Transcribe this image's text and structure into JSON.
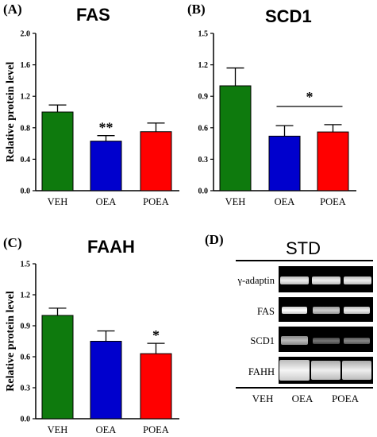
{
  "panels": {
    "a": {
      "letter": "(A)",
      "title": "FAS"
    },
    "b": {
      "letter": "(B)",
      "title": "SCD1"
    },
    "c": {
      "letter": "(C)",
      "title": "FAAH"
    },
    "d": {
      "letter": "(D)",
      "title": "STD"
    }
  },
  "ylabel": "Relative protein level",
  "chart_data": [
    {
      "type": "bar",
      "title": "FAS",
      "ylabel": "Relative protein level",
      "categories": [
        "VEH",
        "OEA",
        "POEA"
      ],
      "values": [
        1.0,
        0.63,
        0.75
      ],
      "errors": [
        0.09,
        0.07,
        0.11
      ],
      "colors": [
        "#0e7a0d",
        "#0000cd",
        "#ff0000"
      ],
      "significance": [
        "",
        "**",
        ""
      ],
      "ylim": [
        0,
        2.0
      ],
      "yticks": [
        "0.0",
        "0.4",
        "0.8",
        "1.2",
        "1.6",
        "2.0"
      ]
    },
    {
      "type": "bar",
      "title": "SCD1",
      "ylabel": "",
      "categories": [
        "VEH",
        "OEA",
        "POEA"
      ],
      "values": [
        1.0,
        0.52,
        0.56
      ],
      "errors": [
        0.17,
        0.1,
        0.07
      ],
      "colors": [
        "#0e7a0d",
        "#0000cd",
        "#ff0000"
      ],
      "significance": [
        "",
        "",
        ""
      ],
      "bracket": {
        "from": "OEA",
        "to": "POEA",
        "label": "*"
      },
      "ylim": [
        0,
        1.5
      ],
      "yticks": [
        "0.0",
        "0.3",
        "0.6",
        "0.9",
        "1.2",
        "1.5"
      ]
    },
    {
      "type": "bar",
      "title": "FAAH",
      "ylabel": "Relative protein level",
      "categories": [
        "VEH",
        "OEA",
        "POEA"
      ],
      "values": [
        1.0,
        0.75,
        0.63
      ],
      "errors": [
        0.07,
        0.1,
        0.1
      ],
      "colors": [
        "#0e7a0d",
        "#0000cd",
        "#ff0000"
      ],
      "significance": [
        "",
        "",
        "*"
      ],
      "ylim": [
        0,
        1.5
      ],
      "yticks": [
        "0.0",
        "0.3",
        "0.6",
        "0.9",
        "1.2",
        "1.5"
      ]
    }
  ],
  "blot": {
    "title": "STD",
    "rows": [
      "γ-adaptin",
      "FAS",
      "SCD1",
      "FAHH"
    ],
    "lanes": [
      "VEH",
      "OEA",
      "POEA"
    ]
  }
}
